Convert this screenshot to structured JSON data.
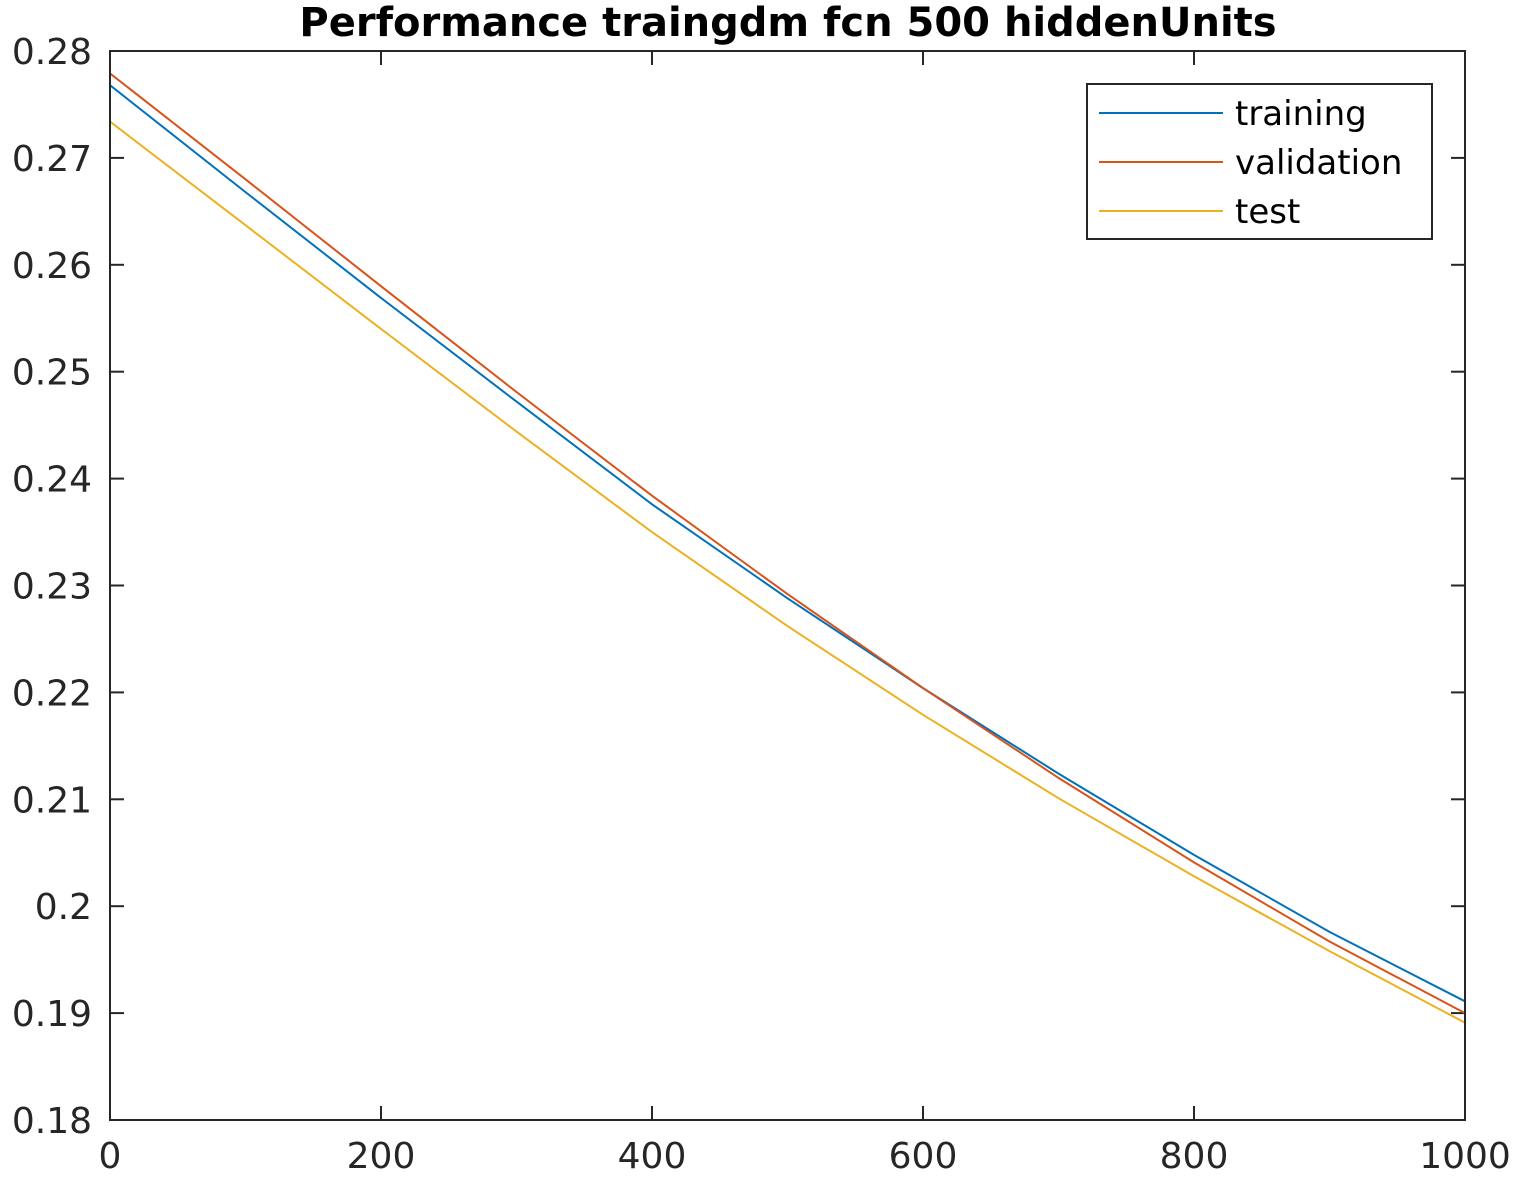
{
  "chart_data": {
    "type": "line",
    "title": "Performance traingdm fcn 500 hiddenUnits",
    "xlabel": "",
    "ylabel": "",
    "xlim": [
      0,
      1000
    ],
    "ylim": [
      0.18,
      0.28
    ],
    "x_ticks": [
      0,
      200,
      400,
      600,
      800,
      1000
    ],
    "x_tick_labels": [
      "0",
      "200",
      "400",
      "600",
      "800",
      "1000"
    ],
    "y_ticks": [
      0.18,
      0.19,
      0.2,
      0.21,
      0.22,
      0.23,
      0.24,
      0.25,
      0.26,
      0.27,
      0.28
    ],
    "y_tick_labels": [
      "0.18",
      "0.19",
      "0.2",
      "0.21",
      "0.22",
      "0.23",
      "0.24",
      "0.25",
      "0.26",
      "0.27",
      "0.28"
    ],
    "grid": false,
    "legend_position": "top-right",
    "x": [
      0,
      100,
      200,
      300,
      400,
      500,
      600,
      700,
      800,
      900,
      1000
    ],
    "series": [
      {
        "name": "training",
        "color": "#0072BD",
        "values": [
          0.2768,
          0.2668,
          0.2569,
          0.2472,
          0.2376,
          0.2288,
          0.2204,
          0.2124,
          0.2048,
          0.1976,
          0.1911
        ]
      },
      {
        "name": "validation",
        "color": "#D95319",
        "values": [
          0.2779,
          0.268,
          0.258,
          0.2481,
          0.2384,
          0.2292,
          0.2204,
          0.212,
          0.2041,
          0.1967,
          0.19
        ]
      },
      {
        "name": "test",
        "color": "#EDB120",
        "values": [
          0.2734,
          0.2637,
          0.254,
          0.2444,
          0.235,
          0.2262,
          0.2179,
          0.2101,
          0.2028,
          0.1958,
          0.1891
        ]
      }
    ]
  }
}
